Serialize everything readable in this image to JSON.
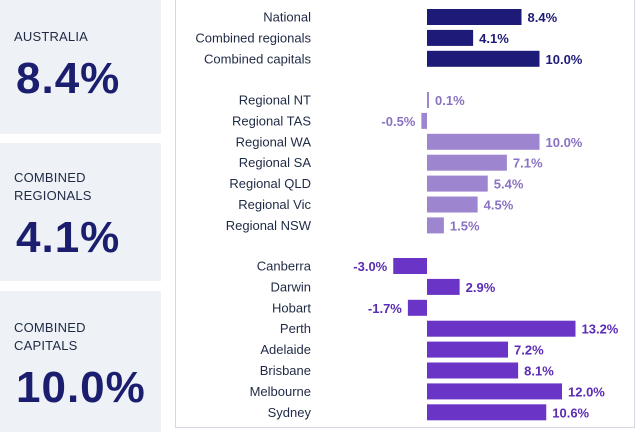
{
  "cards": [
    {
      "label": "AUSTRALIA",
      "value": "8.4%"
    },
    {
      "label": "COMBINED REGIONALS",
      "value": "4.1%"
    },
    {
      "label": "COMBINED CAPITALS",
      "value": "10.0%"
    }
  ],
  "colors": {
    "dark_bar": "#1e1b78",
    "regional_bar": "#9d86cf",
    "capital_bar": "#6a35c6",
    "regional_text": "#8a72c2",
    "capital_text": "#5a2bb5"
  },
  "chart_data": {
    "type": "bar",
    "orientation": "horizontal",
    "unit": "%",
    "groups": [
      {
        "name": "summary",
        "categories": [
          "National",
          "Combined regionals",
          "Combined capitals"
        ],
        "values": [
          8.4,
          4.1,
          10.0
        ],
        "labels": [
          "8.4%",
          "4.1%",
          "10.0%"
        ]
      },
      {
        "name": "regionals",
        "categories": [
          "Regional NT",
          "Regional TAS",
          "Regional WA",
          "Regional SA",
          "Regional QLD",
          "Regional Vic",
          "Regional NSW"
        ],
        "values": [
          0.1,
          -0.5,
          10.0,
          7.1,
          5.4,
          4.5,
          1.5
        ],
        "labels": [
          "0.1%",
          "-0.5%",
          "10.0%",
          "7.1%",
          "5.4%",
          "4.5%",
          "1.5%"
        ]
      },
      {
        "name": "capitals",
        "categories": [
          "Canberra",
          "Darwin",
          "Hobart",
          "Perth",
          "Adelaide",
          "Brisbane",
          "Melbourne",
          "Sydney"
        ],
        "values": [
          -3.0,
          2.9,
          -1.7,
          13.2,
          7.2,
          8.1,
          12.0,
          10.6
        ],
        "labels": [
          "-3.0%",
          "2.9%",
          "-1.7%",
          "13.2%",
          "7.2%",
          "8.1%",
          "12.0%",
          "10.6%"
        ]
      }
    ]
  }
}
